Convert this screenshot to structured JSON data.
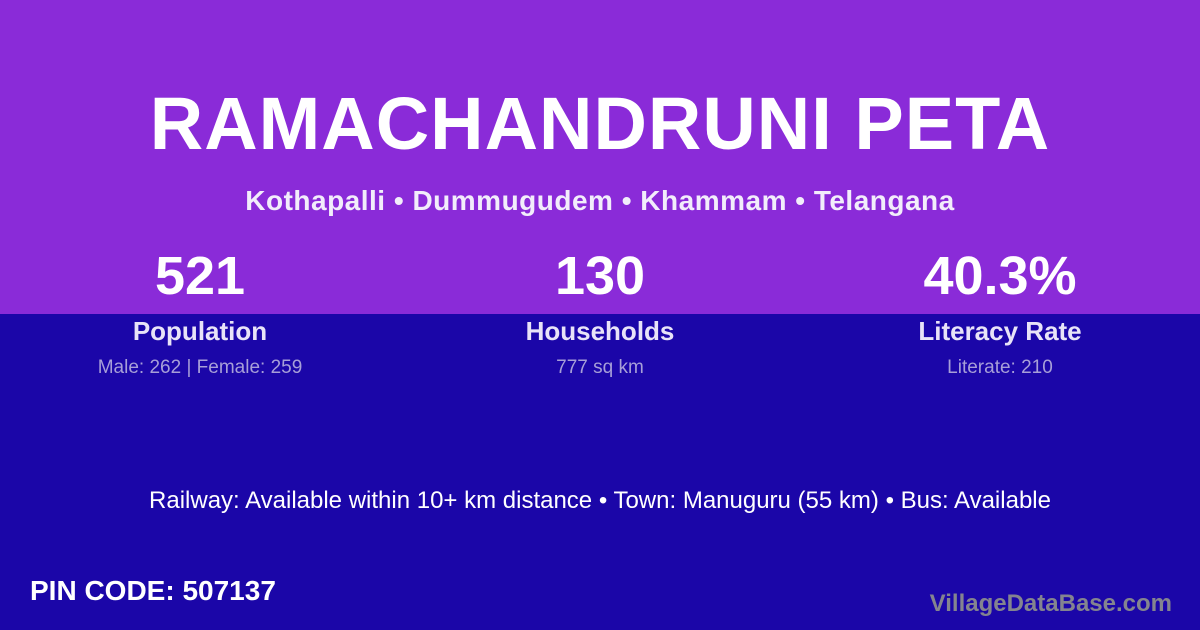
{
  "card": {
    "title": "RAMACHANDRUNI PETA",
    "location_line": "Kothapalli • Dummugudem • Khammam • Telangana"
  },
  "stats": [
    {
      "value": "521",
      "label": "Population",
      "sub": "Male: 262 | Female: 259"
    },
    {
      "value": "130",
      "label": "Households",
      "sub": "777 sq km"
    },
    {
      "value": "40.3%",
      "label": "Literacy Rate",
      "sub": "Literate: 210"
    }
  ],
  "transport": {
    "line": "Railway: Available within 10+ km distance  •  Town: Manuguru (55 km)  •  Bus: Available"
  },
  "footer": {
    "pin_label": "PIN CODE:",
    "pin_value": "507137",
    "watermark": "VillageDataBase.com"
  },
  "colors": {
    "top_background": "#8A2BD8",
    "bottom_background": "#1B06A8",
    "text_primary": "#FFFFFF",
    "text_label": "#E8E3F8",
    "text_muted": "#A79FD8",
    "watermark": "#84848F"
  }
}
